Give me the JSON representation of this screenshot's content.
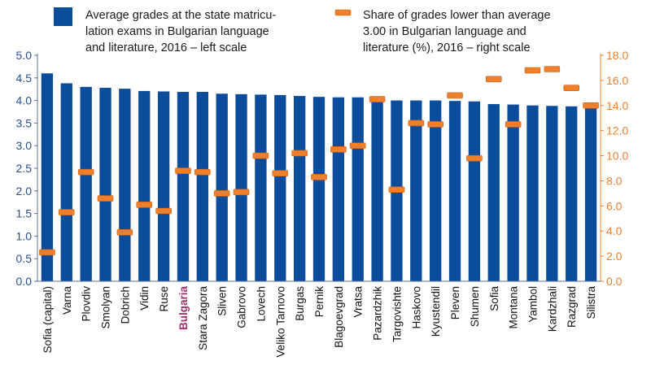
{
  "chart_data": {
    "type": "bar",
    "categories": [
      "Sofia (capital)",
      "Varna",
      "Plovdiv",
      "Smolyan",
      "Dobrich",
      "Vidin",
      "Ruse",
      "Bulgaria",
      "Stara Zagora",
      "Sliven",
      "Gabrovo",
      "Lovech",
      "Veliko Tarnovo",
      "Burgas",
      "Pernik",
      "Blagoevgrad",
      "Vratsa",
      "Pazardzhik",
      "Targovishte",
      "Haskovo",
      "Kyustendil",
      "Pleven",
      "Shumen",
      "Sofia",
      "Montana",
      "Yambol",
      "Kardzhali",
      "Razgrad",
      "Silistra"
    ],
    "highlight_category": "Bulgaria",
    "series": [
      {
        "name": "Average grades at the state matriculation exams in Bulgarian language and literature, 2016 – left scale",
        "axis": "left",
        "mark": "bar",
        "color": "#0b4d9c",
        "values": [
          4.6,
          4.38,
          4.3,
          4.28,
          4.26,
          4.21,
          4.2,
          4.19,
          4.19,
          4.15,
          4.14,
          4.13,
          4.12,
          4.1,
          4.08,
          4.07,
          4.07,
          4.01,
          4.0,
          4.0,
          4.0,
          3.99,
          3.98,
          3.92,
          3.91,
          3.89,
          3.88,
          3.87,
          3.86
        ]
      },
      {
        "name": "Share of grades lower than average 3.00 in Bulgarian language and literature (%), 2016 – right scale",
        "axis": "right",
        "mark": "dash",
        "color": "#f07f2b",
        "values": [
          2.3,
          5.5,
          8.7,
          6.6,
          3.9,
          6.1,
          5.6,
          8.8,
          8.7,
          7.0,
          7.1,
          10.0,
          8.6,
          10.2,
          8.3,
          10.5,
          10.8,
          14.5,
          7.3,
          12.6,
          12.5,
          14.8,
          9.8,
          16.1,
          12.5,
          16.8,
          16.9,
          15.4,
          14.0
        ]
      }
    ],
    "left_axis": {
      "ylim": [
        0,
        5.0
      ],
      "ticks": [
        "0.0",
        "0.5",
        "1.0",
        "1.5",
        "2.0",
        "2.5",
        "3.0",
        "3.5",
        "4.0",
        "4.5",
        "5.0"
      ],
      "color": "#2a4f8f"
    },
    "right_axis": {
      "ylim": [
        0,
        18.0
      ],
      "ticks": [
        "0.0",
        "2.0",
        "4.0",
        "6.0",
        "8.0",
        "10.0",
        "12.0",
        "14.0",
        "16.0",
        "18.0"
      ],
      "color": "#f07f2b"
    },
    "legend": {
      "position": "top",
      "items": [
        {
          "lines": [
            "Average grades at the state matricu-",
            "lation exams in Bulgarian language",
            "and literature, 2016 – left scale"
          ]
        },
        {
          "lines": [
            "Share of grades lower than average",
            "3.00 in Bulgarian language and",
            "literature (%), 2016 – right scale"
          ]
        }
      ]
    },
    "grid": false,
    "title": "",
    "xlabel": "",
    "ylabel": ""
  }
}
